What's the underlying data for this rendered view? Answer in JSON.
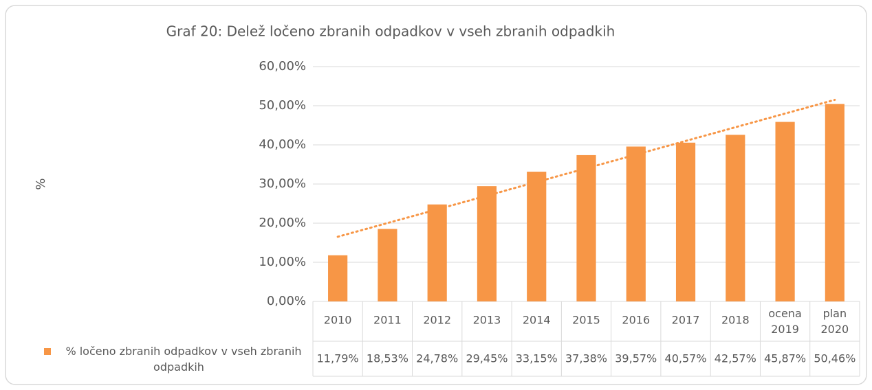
{
  "chart_data": {
    "type": "bar",
    "title": "Graf 20: Delež ločeno zbranih odpadkov v vseh zbranih odpadkih",
    "y_label": "%",
    "categories": [
      "2010",
      "2011",
      "2012",
      "2013",
      "2014",
      "2015",
      "2016",
      "2017",
      "2018",
      "ocena 2019",
      "plan 2020"
    ],
    "series": [
      {
        "name": "% ločeno zbranih odpadkov v vseh zbranih odpadkih",
        "color": "#f79646",
        "values": [
          11.79,
          18.53,
          24.78,
          29.45,
          33.15,
          37.38,
          39.57,
          40.57,
          42.57,
          45.87,
          50.46
        ],
        "value_labels": [
          "11,79%",
          "18,53%",
          "24,78%",
          "29,45%",
          "33,15%",
          "37,38%",
          "39,57%",
          "40,57%",
          "42,57%",
          "45,87%",
          "50,46%"
        ]
      }
    ],
    "ylim": [
      0,
      60
    ],
    "yticks": [
      {
        "value": 0,
        "label": "0,00%"
      },
      {
        "value": 10,
        "label": "10,00%"
      },
      {
        "value": 20,
        "label": "20,00%"
      },
      {
        "value": 30,
        "label": "30,00%"
      },
      {
        "value": 40,
        "label": "40,00%"
      },
      {
        "value": 50,
        "label": "50,00%"
      },
      {
        "value": 60,
        "label": "60,00%"
      }
    ],
    "grid": true,
    "trendline": "linear",
    "data_table": true
  }
}
